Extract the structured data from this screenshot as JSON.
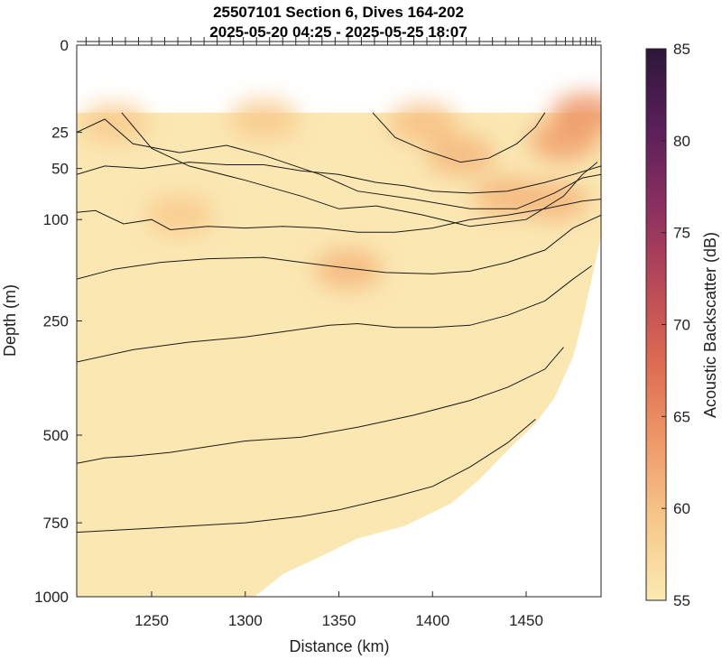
{
  "chart_data": {
    "type": "contour",
    "title_line1": "25507101 Section 6, Dives 164-202",
    "title_line2": "2025-05-20 04:25 - 2025-05-25 18:07",
    "xlabel": "Distance (km)",
    "ylabel": "Depth (m)",
    "colorbar_label": "Acoustic Backscatter (dB)",
    "xlim": [
      1210,
      1490
    ],
    "ylim": [
      0,
      1000
    ],
    "y_scale": "sqrt",
    "x_ticks": [
      1250,
      1300,
      1350,
      1400,
      1450
    ],
    "y_ticks": [
      0,
      25,
      50,
      100,
      250,
      500,
      750,
      1000
    ],
    "clim": [
      55,
      85
    ],
    "colorbar_ticks": [
      55,
      60,
      65,
      70,
      75,
      80,
      85
    ],
    "colormap": [
      "#fbeab3",
      "#f8c88a",
      "#ef9a68",
      "#de6b52",
      "#b94957",
      "#8b2f60",
      "#5a1f5a",
      "#2d1639"
    ],
    "background_color": "#fbe7b2",
    "data_top_depth": 15,
    "bottom_boundary": [
      {
        "x": 1210,
        "depth": 1000
      },
      {
        "x": 1305,
        "depth": 1000
      },
      {
        "x": 1320,
        "depth": 920
      },
      {
        "x": 1340,
        "depth": 860
      },
      {
        "x": 1360,
        "depth": 800
      },
      {
        "x": 1385,
        "depth": 760
      },
      {
        "x": 1410,
        "depth": 690
      },
      {
        "x": 1425,
        "depth": 620
      },
      {
        "x": 1440,
        "depth": 540
      },
      {
        "x": 1455,
        "depth": 470
      },
      {
        "x": 1465,
        "depth": 410
      },
      {
        "x": 1475,
        "depth": 320
      },
      {
        "x": 1480,
        "depth": 250
      },
      {
        "x": 1485,
        "depth": 180
      },
      {
        "x": 1490,
        "depth": 120
      }
    ],
    "hotspots": [
      {
        "x": 1415,
        "depth": 40,
        "db": 61
      },
      {
        "x": 1470,
        "depth": 30,
        "db": 63
      },
      {
        "x": 1482,
        "depth": 15,
        "db": 64
      },
      {
        "x": 1395,
        "depth": 20,
        "db": 60
      },
      {
        "x": 1440,
        "depth": 75,
        "db": 61
      },
      {
        "x": 1465,
        "depth": 80,
        "db": 61
      },
      {
        "x": 1355,
        "depth": 165,
        "db": 61
      },
      {
        "x": 1230,
        "depth": 20,
        "db": 59
      },
      {
        "x": 1310,
        "depth": 18,
        "db": 59
      },
      {
        "x": 1265,
        "depth": 95,
        "db": 59
      }
    ],
    "contours": [
      [
        [
          1234,
          15
        ],
        [
          1250,
          35
        ],
        [
          1270,
          48
        ],
        [
          1300,
          60
        ],
        [
          1330,
          75
        ],
        [
          1350,
          88
        ],
        [
          1370,
          85
        ],
        [
          1395,
          95
        ],
        [
          1420,
          108
        ],
        [
          1450,
          100
        ],
        [
          1470,
          75
        ],
        [
          1480,
          55
        ],
        [
          1488,
          45
        ]
      ],
      [
        [
          1210,
          25
        ],
        [
          1225,
          18
        ],
        [
          1240,
          32
        ],
        [
          1265,
          38
        ],
        [
          1290,
          33
        ],
        [
          1310,
          40
        ],
        [
          1340,
          55
        ],
        [
          1360,
          70
        ],
        [
          1390,
          78
        ],
        [
          1420,
          88
        ],
        [
          1445,
          88
        ],
        [
          1465,
          72
        ],
        [
          1480,
          58
        ],
        [
          1490,
          55
        ]
      ],
      [
        [
          1210,
          55
        ],
        [
          1225,
          48
        ],
        [
          1245,
          50
        ],
        [
          1270,
          45
        ],
        [
          1290,
          47
        ],
        [
          1310,
          47
        ],
        [
          1330,
          52
        ],
        [
          1350,
          55
        ],
        [
          1370,
          62
        ],
        [
          1385,
          65
        ],
        [
          1400,
          70
        ],
        [
          1420,
          72
        ],
        [
          1440,
          70
        ],
        [
          1460,
          62
        ],
        [
          1475,
          55
        ],
        [
          1490,
          48
        ]
      ],
      [
        [
          1368,
          15
        ],
        [
          1380,
          28
        ],
        [
          1395,
          36
        ],
        [
          1415,
          45
        ],
        [
          1430,
          42
        ],
        [
          1445,
          32
        ],
        [
          1455,
          22
        ],
        [
          1460,
          15
        ]
      ],
      [
        [
          1210,
          92
        ],
        [
          1220,
          90
        ],
        [
          1235,
          105
        ],
        [
          1250,
          100
        ],
        [
          1260,
          112
        ],
        [
          1280,
          108
        ],
        [
          1300,
          110
        ],
        [
          1320,
          108
        ],
        [
          1340,
          110
        ],
        [
          1360,
          115
        ],
        [
          1380,
          115
        ],
        [
          1400,
          110
        ],
        [
          1420,
          100
        ],
        [
          1440,
          95
        ],
        [
          1460,
          88
        ],
        [
          1480,
          80
        ],
        [
          1490,
          78
        ]
      ],
      [
        [
          1210,
          180
        ],
        [
          1230,
          165
        ],
        [
          1255,
          155
        ],
        [
          1280,
          150
        ],
        [
          1310,
          148
        ],
        [
          1330,
          155
        ],
        [
          1350,
          162
        ],
        [
          1375,
          170
        ],
        [
          1400,
          172
        ],
        [
          1420,
          168
        ],
        [
          1440,
          155
        ],
        [
          1460,
          138
        ],
        [
          1475,
          110
        ],
        [
          1490,
          95
        ]
      ],
      [
        [
          1210,
          330
        ],
        [
          1240,
          305
        ],
        [
          1270,
          290
        ],
        [
          1300,
          280
        ],
        [
          1320,
          270
        ],
        [
          1345,
          258
        ],
        [
          1360,
          255
        ],
        [
          1380,
          262
        ],
        [
          1400,
          262
        ],
        [
          1420,
          258
        ],
        [
          1440,
          240
        ],
        [
          1460,
          215
        ],
        [
          1475,
          180
        ],
        [
          1485,
          160
        ]
      ],
      [
        [
          1210,
          575
        ],
        [
          1225,
          560
        ],
        [
          1240,
          555
        ],
        [
          1260,
          545
        ],
        [
          1280,
          530
        ],
        [
          1300,
          515
        ],
        [
          1330,
          505
        ],
        [
          1360,
          480
        ],
        [
          1390,
          450
        ],
        [
          1420,
          415
        ],
        [
          1440,
          385
        ],
        [
          1460,
          345
        ],
        [
          1470,
          300
        ]
      ],
      [
        [
          1210,
          780
        ],
        [
          1240,
          770
        ],
        [
          1270,
          760
        ],
        [
          1300,
          750
        ],
        [
          1330,
          730
        ],
        [
          1350,
          710
        ],
        [
          1380,
          670
        ],
        [
          1400,
          640
        ],
        [
          1420,
          585
        ],
        [
          1440,
          520
        ],
        [
          1455,
          460
        ]
      ]
    ],
    "dive_markers_x": [
      1215,
      1222,
      1229,
      1236,
      1243,
      1250,
      1257,
      1264,
      1271,
      1278,
      1285,
      1292,
      1299,
      1306,
      1313,
      1320,
      1327,
      1334,
      1341,
      1348,
      1355,
      1362,
      1369,
      1376,
      1383,
      1390,
      1397,
      1404,
      1411,
      1418,
      1425,
      1432,
      1439,
      1446,
      1453,
      1460,
      1466,
      1471,
      1475,
      1479,
      1482,
      1485,
      1487
    ]
  }
}
